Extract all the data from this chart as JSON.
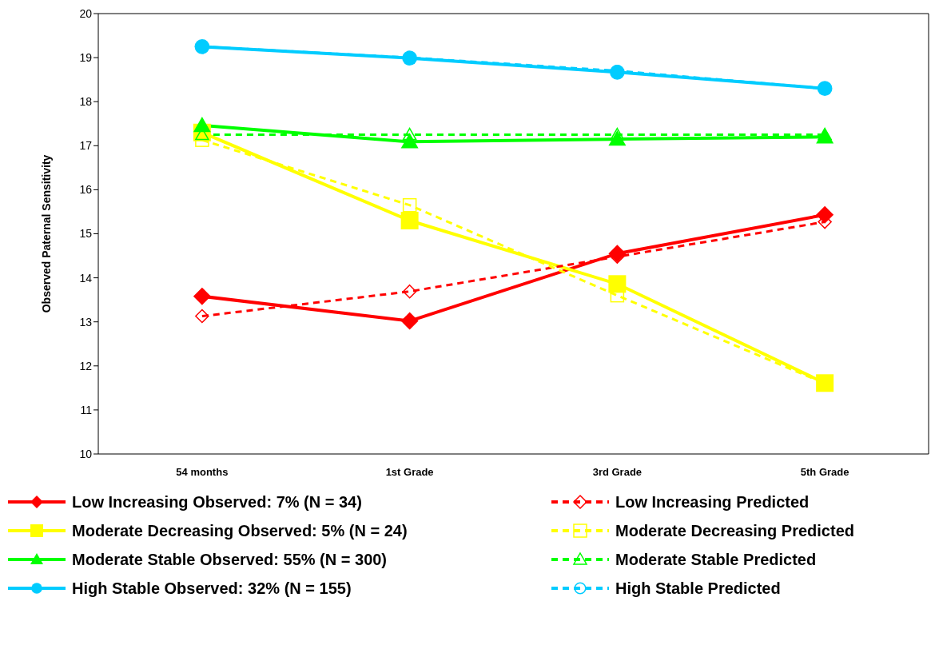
{
  "chart_data": {
    "type": "line",
    "ylabel": "Observed Paternal Sensitivity",
    "categories": [
      "54 months",
      "1st Grade",
      "3rd Grade",
      "5th Grade"
    ],
    "ylim": [
      10,
      20
    ],
    "yticks": [
      10,
      11,
      12,
      13,
      14,
      15,
      16,
      17,
      18,
      19,
      20
    ],
    "grid": false,
    "legend": "bottom",
    "series": [
      {
        "name": "Low Increasing Observed:  7% (N = 34)",
        "color": "#ff0000",
        "marker": "diamond",
        "line_style": "solid",
        "values": [
          13.58,
          13.02,
          14.55,
          15.43
        ]
      },
      {
        "name": "Low Increasing Predicted",
        "color": "#ff0000",
        "marker": "diamond",
        "line_style": "dashed",
        "values": [
          13.13,
          13.69,
          14.48,
          15.27
        ]
      },
      {
        "name": "Moderate Decreasing Observed:  5% (N = 24)",
        "color": "#ffff00",
        "marker": "square",
        "line_style": "solid",
        "values": [
          17.3,
          15.3,
          13.86,
          11.61
        ]
      },
      {
        "name": "Moderate Decreasing Predicted",
        "color": "#ffff00",
        "marker": "square",
        "line_style": "dashed",
        "values": [
          17.13,
          15.65,
          13.6,
          11.6
        ]
      },
      {
        "name": "Moderate Stable Observed:  55% (N = 300)",
        "color": "#00ff00",
        "marker": "triangle",
        "line_style": "solid",
        "values": [
          17.46,
          17.09,
          17.15,
          17.2
        ]
      },
      {
        "name": "Moderate Stable Predicted",
        "color": "#00ff00",
        "marker": "triangle",
        "line_style": "dashed",
        "values": [
          17.25,
          17.25,
          17.25,
          17.25
        ]
      },
      {
        "name": "High Stable Observed:  32% (N = 155)",
        "color": "#00ccff",
        "marker": "circle",
        "line_style": "solid",
        "values": [
          19.25,
          18.99,
          18.67,
          18.3
        ]
      },
      {
        "name": "High Stable Predicted",
        "color": "#00ccff",
        "marker": "circle",
        "line_style": "dashed",
        "values": [
          19.25,
          19.0,
          18.7,
          18.3
        ]
      }
    ]
  }
}
